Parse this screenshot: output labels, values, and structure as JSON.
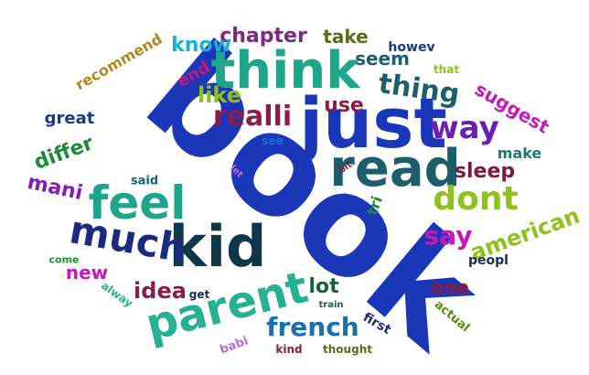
{
  "words": [
    {
      "text": "book",
      "color": "#1a37b8",
      "rot": 40
    },
    {
      "text": "just",
      "color": "#1a37b8",
      "rot": 0
    },
    {
      "text": "read",
      "color": "#1b5f6b",
      "rot": 0
    },
    {
      "text": "think",
      "color": "#1ea58a",
      "rot": 0
    },
    {
      "text": "kid",
      "color": "#0e3848",
      "rot": 0
    },
    {
      "text": "parent",
      "color": "#27b091",
      "rot": -14
    },
    {
      "text": "feel",
      "color": "#1ea58a",
      "rot": 0
    },
    {
      "text": "much",
      "color": "#1b2a80",
      "rot": 10
    },
    {
      "text": "realli",
      "color": "#8c1a4a",
      "rot": 0
    },
    {
      "text": "thing",
      "color": "#1b5f6b",
      "rot": 8
    },
    {
      "text": "way",
      "color": "#6b1fb0",
      "rot": 0
    },
    {
      "text": "dont",
      "color": "#8ec21a",
      "rot": 0
    },
    {
      "text": "say",
      "color": "#c21ab8",
      "rot": 0
    },
    {
      "text": "french",
      "color": "#1a6fb0",
      "rot": 0
    },
    {
      "text": "chapter",
      "color": "#7a2a80",
      "rot": 0
    },
    {
      "text": "use",
      "color": "#8c1a4a",
      "rot": 0
    },
    {
      "text": "sleep",
      "color": "#7a1a40",
      "rot": 0
    },
    {
      "text": "american",
      "color": "#8ec21a",
      "rot": -20
    },
    {
      "text": "idea",
      "color": "#8c1a4a",
      "rot": 0
    },
    {
      "text": "lot",
      "color": "#1b5f3a",
      "rot": 0
    },
    {
      "text": "differ",
      "color": "#1e8a3a",
      "rot": -20
    },
    {
      "text": "mani",
      "color": "#8a1ab8",
      "rot": 12
    },
    {
      "text": "like",
      "color": "#8ec21a",
      "rot": 0
    },
    {
      "text": "know",
      "color": "#1ab0d8",
      "rot": 0
    },
    {
      "text": "take",
      "color": "#5a6a1a",
      "rot": 0
    },
    {
      "text": "seem",
      "color": "#1b5f6b",
      "rot": 0
    },
    {
      "text": "suggest",
      "color": "#c21ab8",
      "rot": 30
    },
    {
      "text": "end",
      "color": "#c21a7a",
      "rot": -30
    },
    {
      "text": "one",
      "color": "#8c1a3a",
      "rot": 0
    },
    {
      "text": "new",
      "color": "#c21ab8",
      "rot": 0
    },
    {
      "text": "great",
      "color": "#1b3a80",
      "rot": 0
    },
    {
      "text": "make",
      "color": "#1b7a6b",
      "rot": 0
    },
    {
      "text": "recommend",
      "color": "#b08a1a",
      "rot": -30
    },
    {
      "text": "howev",
      "color": "#1b3a80",
      "rot": 0
    },
    {
      "text": "that",
      "color": "#8ec21a",
      "rot": 0
    },
    {
      "text": "see",
      "color": "#1a6fd8",
      "rot": 0
    },
    {
      "text": "said",
      "color": "#1b5f6b",
      "rot": 0
    },
    {
      "text": "tri",
      "color": "#1e8a3a",
      "rot": -70
    },
    {
      "text": "bit",
      "color": "#8c1a4a",
      "rot": -35
    },
    {
      "text": "let",
      "color": "#b86ad8",
      "rot": 45
    },
    {
      "text": "come",
      "color": "#1e8a3a",
      "rot": 0
    },
    {
      "text": "alway",
      "color": "#27b091",
      "rot": 35
    },
    {
      "text": "get",
      "color": "#1b2a50",
      "rot": 0
    },
    {
      "text": "train",
      "color": "#1b5f3a",
      "rot": 0
    },
    {
      "text": "peopl",
      "color": "#1b2a50",
      "rot": 0
    },
    {
      "text": "first",
      "color": "#1b2a80",
      "rot": 30
    },
    {
      "text": "actual",
      "color": "#5a8a1a",
      "rot": 40
    },
    {
      "text": "babi",
      "color": "#b86ad8",
      "rot": -20
    },
    {
      "text": "kind",
      "color": "#8c1a4a",
      "rot": 0
    },
    {
      "text": "thought",
      "color": "#5a6a1a",
      "rot": 0
    }
  ]
}
